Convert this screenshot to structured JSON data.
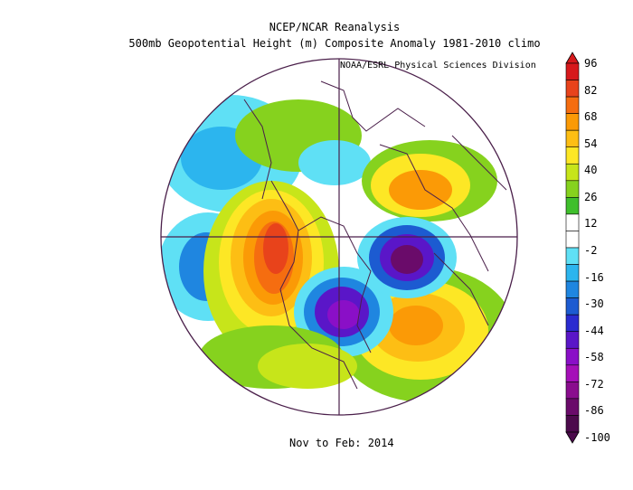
{
  "title": "NCEP/NCAR Reanalysis",
  "subtitle": "500mb Geopotential Height (m) Composite Anomaly 1981-2010 climo",
  "credit": "NOAA/ESRL Physical Sciences Division",
  "period": "Nov to Feb: 2014",
  "colorbar": {
    "labels": [
      "96",
      "82",
      "68",
      "54",
      "40",
      "26",
      "12",
      "-2",
      "-16",
      "-30",
      "-44",
      "-58",
      "-72",
      "-86",
      "-100"
    ],
    "colors": [
      "#d7191c",
      "#e8431b",
      "#f56d10",
      "#fb9a06",
      "#fdbe14",
      "#fde725",
      "#c7e51a",
      "#86d21e",
      "#3fbf2c",
      "#ffffff",
      "#ffffff",
      "#5fe0f5",
      "#2cb5ee",
      "#1f86e0",
      "#1c5bd1",
      "#2a2bd0",
      "#5a16c8",
      "#8a0fc7",
      "#a50fb8",
      "#8a0d8e",
      "#6a0b6a",
      "#4c0a4c"
    ]
  },
  "anomaly_centers": [
    {
      "name": "western-ridge",
      "value": 82
    },
    {
      "name": "eastern-trough",
      "value": -72
    },
    {
      "name": "north-atlantic-trough",
      "value": -86
    },
    {
      "name": "atlantic-ridge",
      "value": 54
    },
    {
      "name": "scandinavia-ridge",
      "value": 54
    }
  ]
}
